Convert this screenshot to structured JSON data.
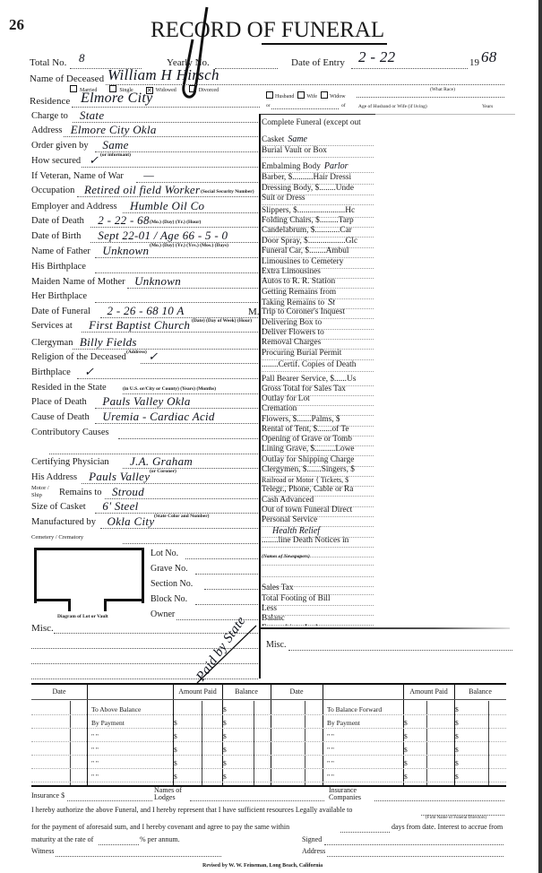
{
  "page_number": "26",
  "title": "RECORD OF FUNERAL",
  "header": {
    "total_no_label": "Total No.",
    "total_no_value": "8",
    "yearly_no_label": "Yearly No.",
    "date_of_entry_label": "Date of Entry",
    "date_of_entry_value": "2 - 22",
    "year_prefix": "19",
    "year_value": "68",
    "name_label": "Name of Deceased",
    "name_value": "William H  Hirsch",
    "marital": [
      "Married",
      "Single",
      "Widowed",
      "Divorced"
    ],
    "marital_checked": "Widowed",
    "what_race": "(What Race)",
    "spouse_options": [
      "Husband",
      "Wife",
      "Widow"
    ],
    "or_label": "or",
    "of_label": "of",
    "age_spouse_label": "Age of Husband or Wife (if living)",
    "years_label": "Years",
    "residence_label": "Residence",
    "residence_value": "Elmore City"
  },
  "left_fields": [
    {
      "label": "Charge to",
      "value": "State"
    },
    {
      "label": "Address",
      "value": "Elmore City  Okla"
    },
    {
      "label": "Order given by",
      "value": "Same",
      "note": "(or informant)"
    },
    {
      "label": "How secured",
      "value": "✓"
    },
    {
      "label": "If Veteran, Name of War",
      "value": "—"
    },
    {
      "label": "Occupation",
      "value": "Retired oil field Worker",
      "note": "(Social Security Number)"
    },
    {
      "label": "Employer and Address",
      "value": "Humble Oil Co"
    },
    {
      "label": "Date of Death",
      "value": "2 - 22 - 68",
      "note": "(Mo.)      (Day)      (Yr.)      (Hour)"
    },
    {
      "label": "Date of Birth",
      "value": "Sept 22-01 / Age 66 - 5 - 0",
      "note": "(Mo.)  (Day)  (Yr.)  (Yrs.)  (Mos.)  (Days)"
    },
    {
      "label": "Name of Father",
      "value": "Unknown"
    },
    {
      "label": "His Birthplace",
      "value": ""
    },
    {
      "label": "Maiden Name of Mother",
      "value": "Unknown"
    },
    {
      "label": "Her Birthplace",
      "value": ""
    },
    {
      "label": "Date of Funeral",
      "value": "2 - 26 - 68   10 A",
      "suffix": "M.",
      "note": "(Date)   (Day of Week)   (Hour)"
    },
    {
      "label": "Services at",
      "value": "First Baptist Church"
    },
    {
      "label": "Clergyman",
      "value": "Billy Fields",
      "note": "(Address)"
    },
    {
      "label": "Religion of the Deceased",
      "value": "✓"
    },
    {
      "label": "Birthplace",
      "value": "✓"
    },
    {
      "label": "Resided in the State",
      "value": "",
      "note": "(in U.S. or/City or County)   (Years)   (Months)"
    },
    {
      "label": "Place of Death",
      "value": "Pauls Valley  Okla"
    },
    {
      "label": "Cause of Death",
      "value": "Uremia - Cardiac Acid"
    },
    {
      "label": "Contributory Causes",
      "value": ""
    },
    {
      "label": "",
      "value": ""
    },
    {
      "label": "Certifying Physician",
      "value": "J.A. Graham",
      "note": "(or Coroner)"
    },
    {
      "label": "His Address",
      "value": "Pauls Valley"
    },
    {
      "label": "Remains to",
      "value": "Stroud",
      "prefix": "Motor / Ship"
    },
    {
      "label": "Size of Casket",
      "value": "6' Steel",
      "note": "(State Color and Number)"
    },
    {
      "label": "Manufactured by",
      "value": "Okla City"
    },
    {
      "label": "Cemetery / Crematory",
      "value": ""
    }
  ],
  "lot": {
    "diagram_caption": "Diagram of Lot or Vault",
    "fields": [
      "Lot No.",
      "Grave No.",
      "Section No.",
      "Block No.",
      "Owner"
    ],
    "misc_label": "Misc."
  },
  "signature_scrawl": "Paid by State",
  "right_items": [
    {
      "label": "Complete Funeral (except out"
    },
    {
      "label": "Casket",
      "value": "Same"
    },
    {
      "label": "Burial Vault or Box"
    },
    {
      "label": "Embalming Body",
      "value": "Parlor"
    },
    {
      "label": "Barber, $..........Hair Dressi"
    },
    {
      "label": "Dressing Body, $........Unde"
    },
    {
      "label": "Suit or Dress"
    },
    {
      "label": "Slippers, $.......................Hc"
    },
    {
      "label": "Folding Chairs, $.........Tarp"
    },
    {
      "label": "Candelabrum, $............Car"
    },
    {
      "label": "Door Spray, $..................Glc"
    },
    {
      "label": "Funeral Car, $........Ambul"
    },
    {
      "label": "Limousines to Cemetery"
    },
    {
      "label": "Extra Limousines"
    },
    {
      "label": "Autos to R. R. Station"
    },
    {
      "label": "Getting Remains from"
    },
    {
      "label": "Taking Remains to",
      "value": "St"
    },
    {
      "label": "Trip to Coroner's Inquest"
    },
    {
      "label": "Delivering Box to"
    },
    {
      "label": "Deliver Flowers to"
    },
    {
      "label": "Removal Charges"
    },
    {
      "label": "Procuring Burial Permit"
    },
    {
      "label": "........Certif. Copies of Death"
    },
    {
      "label": "Pall Bearer Service, $......Us"
    },
    {
      "label": "Gross Total for Sales Tax"
    },
    {
      "label": "Outlay for Lot"
    },
    {
      "label": "Cremation"
    },
    {
      "label": "Flowers, $.......Palms, $"
    },
    {
      "label": "Rental of Tent, $.......of Te"
    },
    {
      "label": "Opening of Grave or Tomb"
    },
    {
      "label": "Lining Grave, $..........Lowe"
    },
    {
      "label": "Outlay for Shipping Charge"
    },
    {
      "label": "Clergymen, $.......Singers, $"
    },
    {
      "label": "Railroad or Motor { Tickets, $"
    },
    {
      "label": "Telegr., Phone, Cable or Ra"
    },
    {
      "label": "Cash Advanced"
    },
    {
      "label": "Out of town Funeral Direct"
    },
    {
      "label": "Personal Service"
    },
    {
      "label": "",
      "value": "Health Relief"
    },
    {
      "label": "........line Death Notices in"
    },
    {
      "label": ""
    },
    {
      "label": "(Names of Newspapers)"
    },
    {
      "label": ""
    },
    {
      "label": ""
    },
    {
      "label": "Sales Tax"
    },
    {
      "label": "Total Footing of Bill"
    },
    {
      "label": "Less"
    },
    {
      "label": "                    Balanc"
    },
    {
      "label": "Entered into Ledger, page"
    }
  ],
  "right_misc_label": "Misc.",
  "payments": {
    "headers": [
      "Date",
      "Amount Paid",
      "Balance",
      "Date",
      "Amount Paid",
      "Balance"
    ],
    "left_rows": [
      "To Above Balance",
      "By Payment",
      "\"     \"",
      "\"     \"",
      "\"     \"",
      "\"     \""
    ],
    "right_rows": [
      "To Balance Forward",
      "By Payment",
      "\"     \"",
      "\"     \"",
      "\"     \"",
      "\"     \""
    ],
    "currency": "$"
  },
  "footer": {
    "insurance": "Insurance $",
    "lodges": "Names of Lodges",
    "companies": "Insurance Companies",
    "authorize": "I hereby authorize the above Funeral, and I hereby represent that I have sufficient resources Legally available to",
    "firm_name": "(Firm Name of Funeral Directors)",
    "payment": "for the payment of aforesaid sum, and I hereby covenant and agree to pay the same within",
    "days": "days from date. Interest to accrue from",
    "maturity": "maturity at the rate of",
    "percent": "% per annum.",
    "signed": "Signed",
    "witness": "Witness",
    "address": "Address",
    "revised": "Revised by W. W. Feineman, Long Beach, California"
  }
}
